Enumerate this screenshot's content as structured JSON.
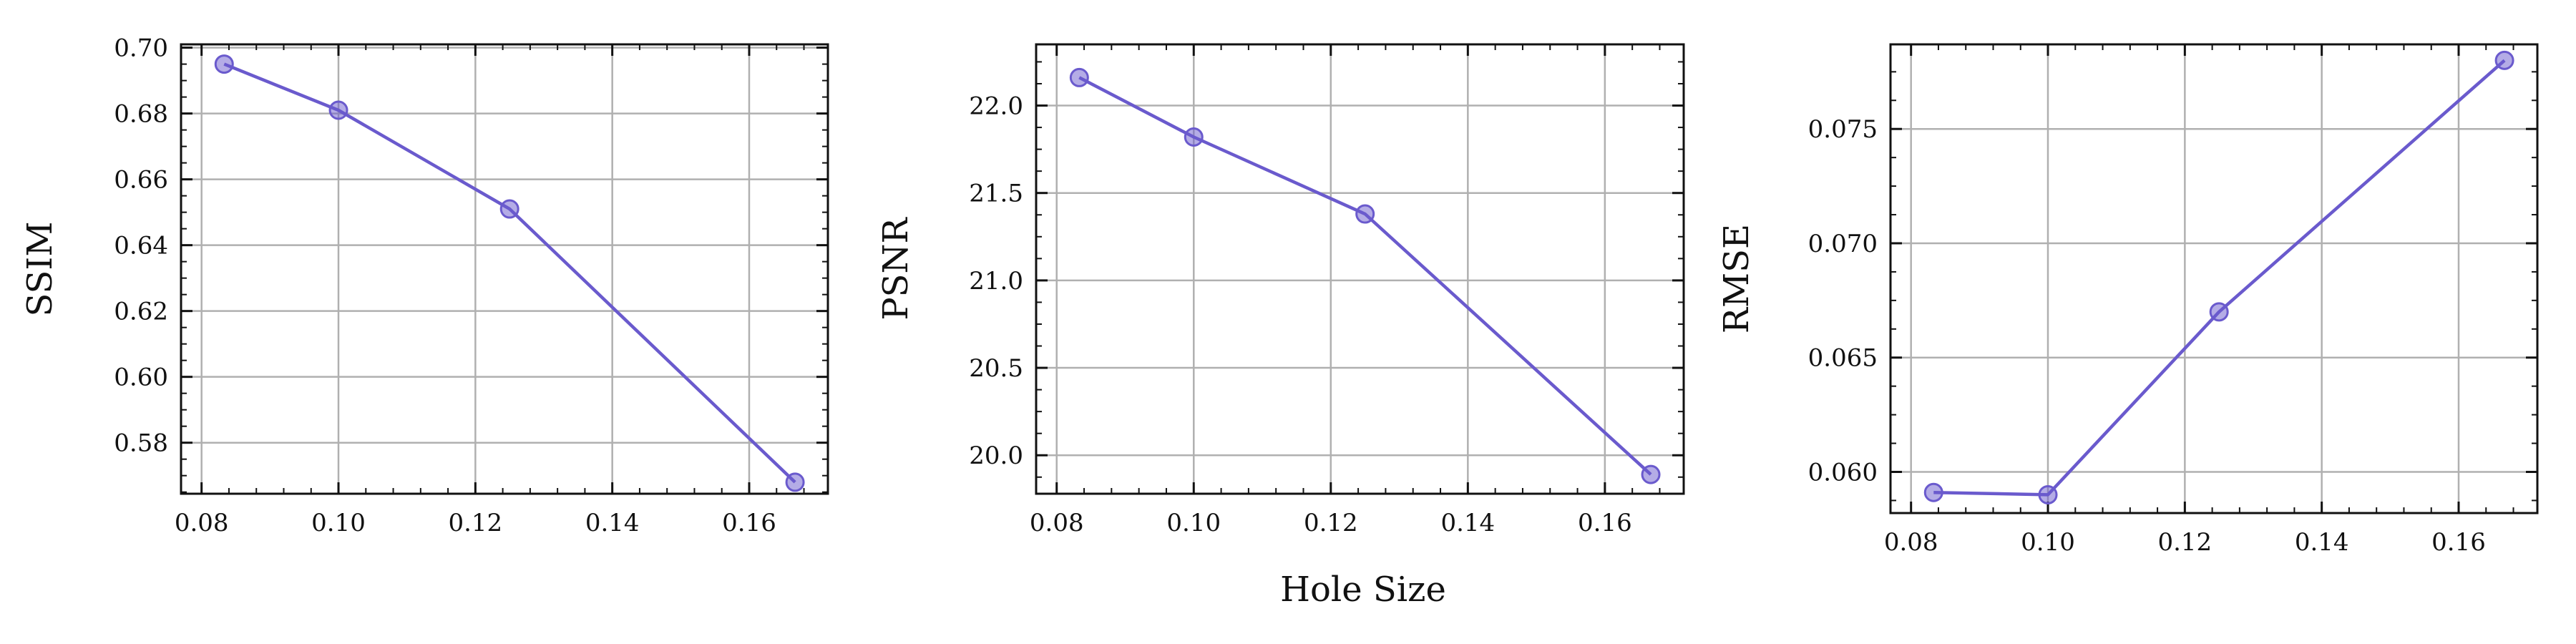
{
  "figure": {
    "shared_xlabel": "Hole Size"
  },
  "chart_data": [
    {
      "type": "line",
      "xlabel": "",
      "ylabel": "SSIM",
      "x": [
        0.0833,
        0.1,
        0.125,
        0.1667
      ],
      "series": [
        {
          "values": [
            0.695,
            0.681,
            0.651,
            0.568
          ]
        }
      ],
      "xlim": [
        0.077,
        0.1715
      ],
      "ylim": [
        0.5645,
        0.701
      ],
      "xticks": [
        0.08,
        0.1,
        0.12,
        0.14,
        0.16
      ],
      "xtick_labels": [
        "0.08",
        "0.10",
        "0.12",
        "0.14",
        "0.16"
      ],
      "yticks": [
        0.58,
        0.6,
        0.62,
        0.64,
        0.66,
        0.68,
        0.7
      ],
      "ytick_labels": [
        "0.58",
        "0.60",
        "0.62",
        "0.64",
        "0.66",
        "0.68",
        "0.70"
      ],
      "grid": true,
      "color": "#6a5acd"
    },
    {
      "type": "line",
      "xlabel": "",
      "ylabel": "PSNR",
      "x": [
        0.0833,
        0.1,
        0.125,
        0.1667
      ],
      "series": [
        {
          "values": [
            22.16,
            21.82,
            21.38,
            19.89
          ]
        }
      ],
      "xlim": [
        0.077,
        0.1715
      ],
      "ylim": [
        19.78,
        22.35
      ],
      "xticks": [
        0.08,
        0.1,
        0.12,
        0.14,
        0.16
      ],
      "xtick_labels": [
        "0.08",
        "0.10",
        "0.12",
        "0.14",
        "0.16"
      ],
      "yticks": [
        20.0,
        20.5,
        21.0,
        21.5,
        22.0
      ],
      "ytick_labels": [
        "20.0",
        "20.5",
        "21.0",
        "21.5",
        "22.0"
      ],
      "grid": true,
      "color": "#6a5acd"
    },
    {
      "type": "line",
      "xlabel": "",
      "ylabel": "RMSE",
      "x": [
        0.0833,
        0.1,
        0.125,
        0.1667
      ],
      "series": [
        {
          "values": [
            0.0591,
            0.059,
            0.067,
            0.078
          ]
        }
      ],
      "xlim": [
        0.077,
        0.1715
      ],
      "ylim": [
        0.0582,
        0.0787
      ],
      "xticks": [
        0.08,
        0.1,
        0.12,
        0.14,
        0.16
      ],
      "xtick_labels": [
        "0.08",
        "0.10",
        "0.12",
        "0.14",
        "0.16"
      ],
      "yticks": [
        0.06,
        0.065,
        0.07,
        0.075
      ],
      "ytick_labels": [
        "0.060",
        "0.065",
        "0.070",
        "0.075"
      ],
      "grid": true,
      "color": "#6a5acd"
    }
  ]
}
